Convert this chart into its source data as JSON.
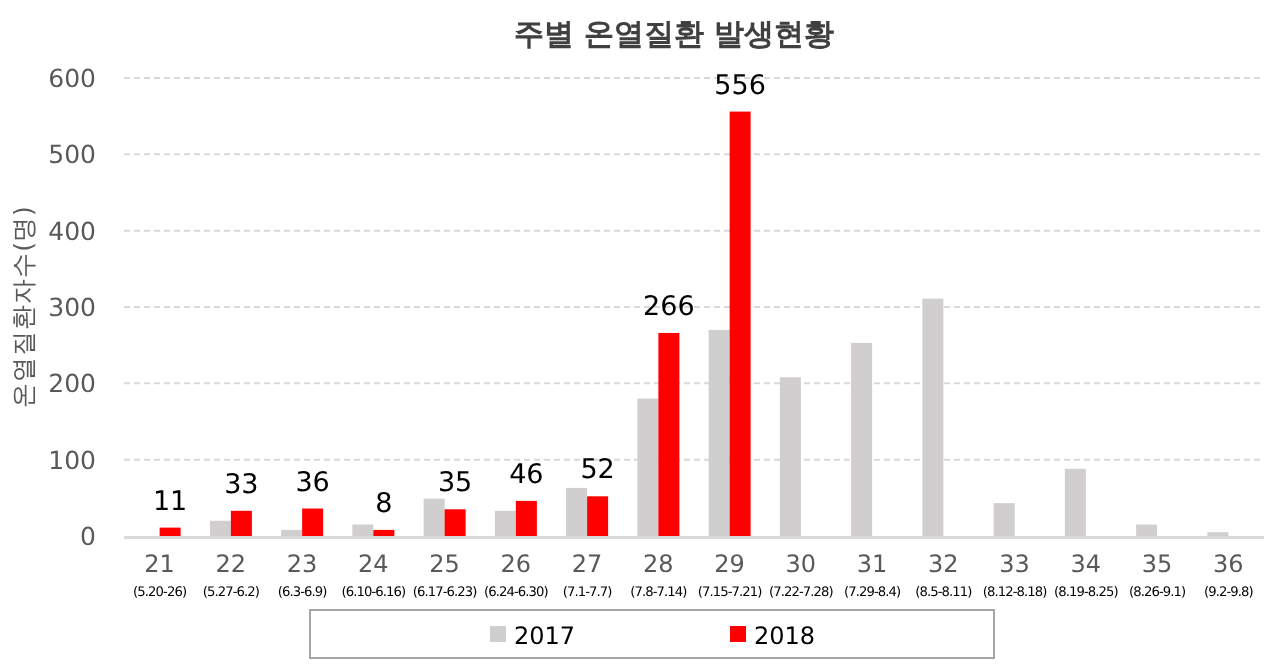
{
  "chart_data": {
    "type": "bar",
    "title": "주별 온열질환 발생현황",
    "ylabel": "온열질환자수(명)",
    "categories": [
      "21\n(5.20-26)",
      "22\n(5.27-6.2)",
      "23\n(6.3-6.9)",
      "24\n(6.10-6.16)",
      "25\n(6.17-6.23)",
      "26\n(6.24-6.30)",
      "27\n(7.1-7.7)",
      "28\n(7.8-7.14)",
      "29\n(7.15-7.21)",
      "30\n(7.22-7.28)",
      "31\n(7.29-8.4)",
      "32\n(8.5-8.11)",
      "33\n(8.12-8.18)",
      "34\n(8.19-8.25)",
      "35\n(8.26-9.1)",
      "36\n(9.2-9.8)"
    ],
    "series": [
      {
        "name": "2017",
        "color": "#d0cece",
        "values": [
          null,
          20,
          8,
          15,
          49,
          33,
          63,
          180,
          270,
          208,
          253,
          311,
          43,
          88,
          15,
          5
        ]
      },
      {
        "name": "2018",
        "color": "#ff0000",
        "values": [
          11,
          33,
          36,
          8,
          35,
          46,
          52,
          266,
          556,
          null,
          null,
          null,
          null,
          null,
          null,
          null
        ],
        "value_labels": [
          "11",
          "33",
          "36",
          "8",
          "35",
          "46",
          "52",
          "266",
          "556",
          null,
          null,
          null,
          null,
          null,
          null,
          null
        ]
      }
    ],
    "ylim": [
      0,
      600
    ],
    "yticks": [
      0,
      100,
      200,
      300,
      400,
      500,
      600
    ],
    "grid": "y",
    "legend": "bottom"
  }
}
